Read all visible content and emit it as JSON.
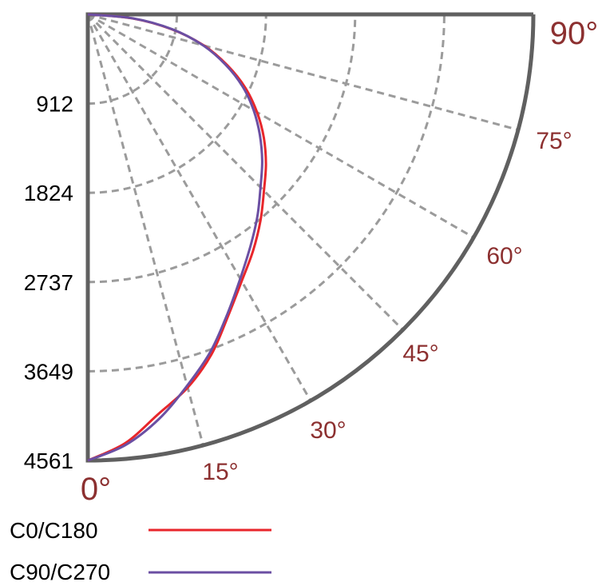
{
  "chart_data": {
    "type": "polar",
    "title": "",
    "radial_unit": "",
    "radial_ticks": [
      "912",
      "1824",
      "2737",
      "3649",
      "4561"
    ],
    "radial_max": 4561,
    "angle_ticks": [
      {
        "value": 0,
        "label": "0°"
      },
      {
        "value": 15,
        "label": "15°"
      },
      {
        "value": 30,
        "label": "30°"
      },
      {
        "value": 45,
        "label": "45°"
      },
      {
        "value": 60,
        "label": "60°"
      },
      {
        "value": 75,
        "label": "75°"
      },
      {
        "value": 90,
        "label": "90°"
      }
    ],
    "grid": true,
    "legend_position": "bottom-left",
    "series": [
      {
        "name": "C0/C180",
        "color": "#e8262b",
        "points": [
          {
            "angle": 0,
            "value": 4561
          },
          {
            "angle": 5,
            "value": 4400
          },
          {
            "angle": 10,
            "value": 4150
          },
          {
            "angle": 15,
            "value": 3950
          },
          {
            "angle": 20,
            "value": 3700
          },
          {
            "angle": 25,
            "value": 3400
          },
          {
            "angle": 30,
            "value": 3150
          },
          {
            "angle": 35,
            "value": 2950
          },
          {
            "angle": 40,
            "value": 2750
          },
          {
            "angle": 45,
            "value": 2550
          },
          {
            "angle": 50,
            "value": 2380
          },
          {
            "angle": 55,
            "value": 2200
          },
          {
            "angle": 60,
            "value": 2000
          },
          {
            "angle": 65,
            "value": 1780
          },
          {
            "angle": 70,
            "value": 1520
          },
          {
            "angle": 75,
            "value": 1230
          },
          {
            "angle": 80,
            "value": 870
          },
          {
            "angle": 85,
            "value": 450
          },
          {
            "angle": 90,
            "value": 0
          }
        ]
      },
      {
        "name": "C90/C270",
        "color": "#6b4fa3",
        "points": [
          {
            "angle": 0,
            "value": 4561
          },
          {
            "angle": 5,
            "value": 4420
          },
          {
            "angle": 10,
            "value": 4200
          },
          {
            "angle": 15,
            "value": 3930
          },
          {
            "angle": 20,
            "value": 3670
          },
          {
            "angle": 25,
            "value": 3380
          },
          {
            "angle": 30,
            "value": 3120
          },
          {
            "angle": 35,
            "value": 2900
          },
          {
            "angle": 40,
            "value": 2700
          },
          {
            "angle": 45,
            "value": 2500
          },
          {
            "angle": 50,
            "value": 2330
          },
          {
            "angle": 55,
            "value": 2150
          },
          {
            "angle": 60,
            "value": 1960
          },
          {
            "angle": 65,
            "value": 1750
          },
          {
            "angle": 70,
            "value": 1500
          },
          {
            "angle": 75,
            "value": 1220
          },
          {
            "angle": 80,
            "value": 880
          },
          {
            "angle": 85,
            "value": 460
          },
          {
            "angle": 90,
            "value": 0
          }
        ]
      }
    ]
  },
  "colors": {
    "frame": "#606060",
    "grid": "#9b9b9b",
    "angle_label": "#8c3030",
    "radial_label": "#000000"
  }
}
